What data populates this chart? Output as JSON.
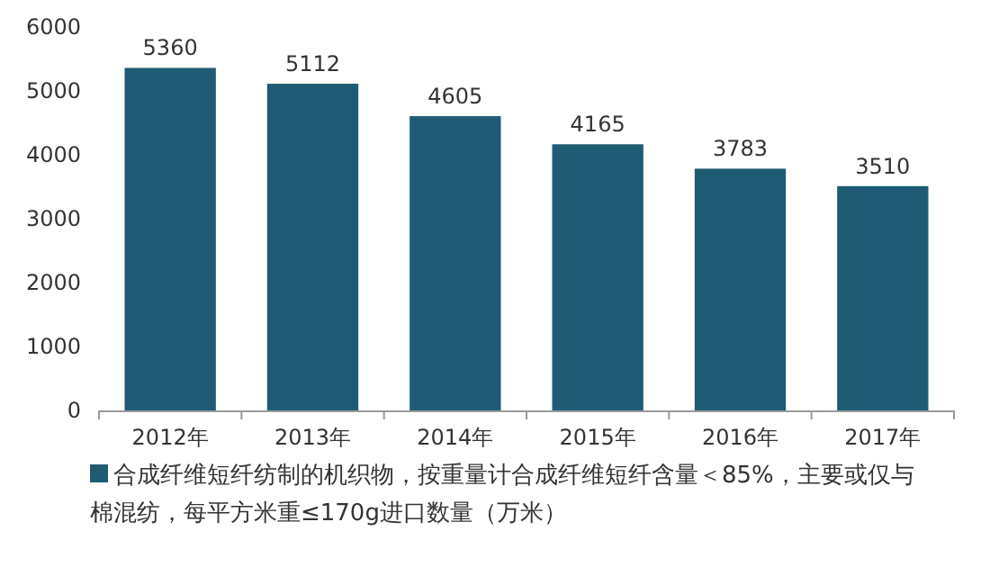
{
  "chart_data": {
    "type": "bar",
    "categories": [
      "2012年",
      "2013年",
      "2014年",
      "2015年",
      "2016年",
      "2017年"
    ],
    "series": [
      {
        "name": "合成纤维短纤纺制的机织物，按重量计合成纤维短纤含量＜85%，主要或仅与棉混纺，每平方米重≤170g进口数量（万米）",
        "color": "#1f5c74",
        "values": [
          5360,
          5112,
          4605,
          4165,
          3783,
          3510
        ]
      }
    ],
    "ylim": [
      0,
      6000
    ],
    "yticks": [
      0,
      1000,
      2000,
      3000,
      4000,
      5000,
      6000
    ],
    "data_labels": true,
    "legend": "bottom",
    "grid": false
  }
}
